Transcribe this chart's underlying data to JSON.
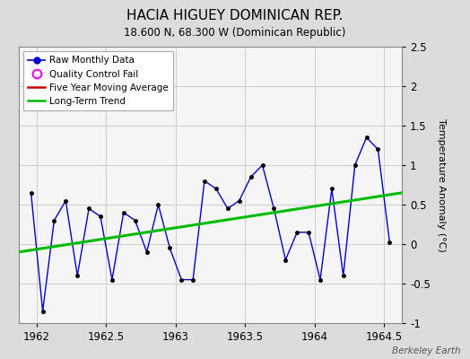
{
  "title": "HACIA HIGUEY DOMINICAN REP.",
  "subtitle": "18.600 N, 68.300 W (Dominican Republic)",
  "ylabel": "Temperature Anomaly (°C)",
  "footer": "Berkeley Earth",
  "background_color": "#dcdcdc",
  "plot_bg_color": "#f5f5f5",
  "xlim": [
    1961.87,
    1964.63
  ],
  "ylim": [
    -1.0,
    2.5
  ],
  "yticks": [
    -1.0,
    -0.5,
    0.0,
    0.5,
    1.0,
    1.5,
    2.0,
    2.5
  ],
  "xticks": [
    1962.0,
    1962.5,
    1963.0,
    1963.5,
    1964.0,
    1964.5
  ],
  "raw_x": [
    1961.958,
    1962.042,
    1962.125,
    1962.208,
    1962.292,
    1962.375,
    1962.458,
    1962.542,
    1962.625,
    1962.708,
    1962.792,
    1962.875,
    1962.958,
    1963.042,
    1963.125,
    1963.208,
    1963.292,
    1963.375,
    1963.458,
    1963.542,
    1963.625,
    1963.708,
    1963.792,
    1963.875,
    1963.958,
    1964.042,
    1964.125,
    1964.208,
    1964.292,
    1964.375,
    1964.458,
    1964.542
  ],
  "raw_y": [
    0.65,
    -0.85,
    0.3,
    0.55,
    -0.4,
    0.45,
    0.35,
    -0.45,
    0.4,
    0.3,
    -0.1,
    0.5,
    -0.05,
    -0.45,
    -0.45,
    0.8,
    0.7,
    0.45,
    0.55,
    0.85,
    1.0,
    0.45,
    -0.2,
    0.15,
    0.15,
    -0.45,
    0.7,
    -0.4,
    1.0,
    1.35,
    1.2,
    0.02
  ],
  "trend_x": [
    1961.87,
    1964.63
  ],
  "trend_y": [
    -0.1,
    0.65
  ],
  "raw_line_color": "#0000cc",
  "raw_marker_color": "#000000",
  "trend_color": "#00bb00",
  "moving_avg_color": "#cc0000",
  "qc_marker_color": "#ff00ff",
  "grid_color": "#cccccc"
}
